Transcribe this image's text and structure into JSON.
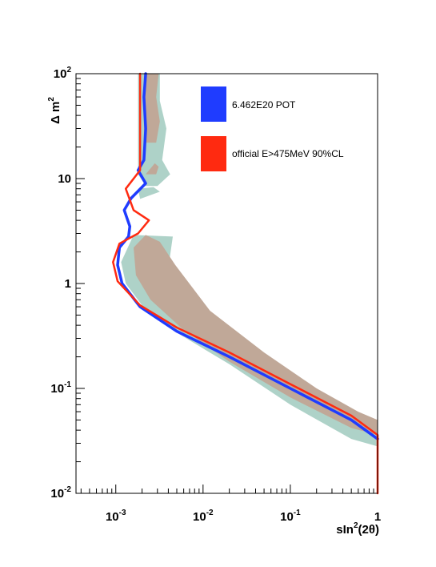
{
  "chart_data": {
    "type": "line",
    "title": "",
    "xlabel": "sin²(2θ)",
    "ylabel": "Δm²",
    "x_scale": "log",
    "y_scale": "log",
    "xlim": [
      0.00035,
      1
    ],
    "ylim": [
      0.01,
      100
    ],
    "x_ticks": [
      {
        "value": 0.001,
        "base": "10",
        "exp": "-3"
      },
      {
        "value": 0.01,
        "base": "10",
        "exp": "-2"
      },
      {
        "value": 0.1,
        "base": "10",
        "exp": "-1"
      },
      {
        "value": 1,
        "base": "1",
        "exp": ""
      }
    ],
    "y_ticks": [
      {
        "value": 0.01,
        "base": "10",
        "exp": "-2"
      },
      {
        "value": 0.1,
        "base": "10",
        "exp": "-1"
      },
      {
        "value": 1,
        "base": "1",
        "exp": ""
      },
      {
        "value": 10,
        "base": "10",
        "exp": ""
      },
      {
        "value": 100,
        "base": "10",
        "exp": "2"
      }
    ],
    "legend_position": "top-right",
    "series": [
      {
        "name": "6.462E20 POT",
        "color": "#1f3cff",
        "points": [
          [
            0.0022,
            100
          ],
          [
            0.0021,
            60
          ],
          [
            0.0022,
            30
          ],
          [
            0.0021,
            15
          ],
          [
            0.0018,
            12
          ],
          [
            0.0022,
            9
          ],
          [
            0.0015,
            6.5
          ],
          [
            0.00125,
            5
          ],
          [
            0.00145,
            3.5
          ],
          [
            0.0014,
            2.8
          ],
          [
            0.0011,
            2.2
          ],
          [
            0.00105,
            1.5
          ],
          [
            0.00118,
            1.0
          ],
          [
            0.0019,
            0.6
          ],
          [
            0.005,
            0.35
          ],
          [
            0.02,
            0.2
          ],
          [
            0.1,
            0.1
          ],
          [
            0.5,
            0.05
          ],
          [
            1,
            0.033
          ]
        ]
      },
      {
        "name": "official E>475MeV 90%CL",
        "color": "#ff2a10",
        "points": [
          [
            0.0019,
            100
          ],
          [
            0.0019,
            50
          ],
          [
            0.0019,
            20
          ],
          [
            0.0019,
            12
          ],
          [
            0.0013,
            8
          ],
          [
            0.0016,
            5
          ],
          [
            0.0024,
            4
          ],
          [
            0.0018,
            3
          ],
          [
            0.0011,
            2.4
          ],
          [
            0.00093,
            1.6
          ],
          [
            0.00105,
            1.05
          ],
          [
            0.0019,
            0.62
          ],
          [
            0.005,
            0.38
          ],
          [
            0.02,
            0.22
          ],
          [
            0.1,
            0.11
          ],
          [
            0.5,
            0.055
          ],
          [
            1,
            0.036
          ],
          [
            1,
            0.01
          ]
        ]
      }
    ],
    "bands": [
      {
        "name": "",
        "color": "#aed2c8"
      },
      {
        "name": "",
        "color": "#c0a898"
      }
    ]
  },
  "legend": [
    {
      "label": "6.462E20 POT",
      "color": "#1f3cff"
    },
    {
      "label": "official E>475MeV 90%CL",
      "color": "#ff2a10"
    }
  ],
  "axis_titles": {
    "y_prefix": "Δ m",
    "y_sup": "2",
    "x_main": "sIn",
    "x_sup": "2",
    "x_rest": "(2θ)"
  }
}
